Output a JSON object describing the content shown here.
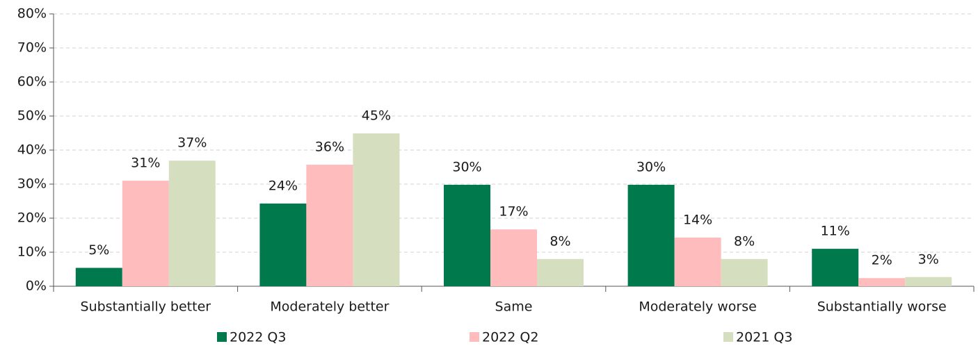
{
  "chart_data": {
    "type": "bar",
    "categories": [
      "Substantially better",
      "Moderately better",
      "Same",
      "Moderately worse",
      "Substantially worse"
    ],
    "series": [
      {
        "name": "2022 Q3",
        "color": "#007a4d",
        "values": [
          5.4,
          24.3,
          29.8,
          29.8,
          11.0
        ],
        "value_labels": [
          "5%",
          "24%",
          "30%",
          "30%",
          "11%"
        ]
      },
      {
        "name": "2022 Q2",
        "color": "#ffbcbc",
        "values": [
          31.0,
          35.7,
          16.7,
          14.3,
          2.4
        ],
        "value_labels": [
          "31%",
          "36%",
          "17%",
          "14%",
          "2%"
        ]
      },
      {
        "name": "2021 Q3",
        "color": "#d5dfc0",
        "values": [
          36.9,
          44.9,
          8.0,
          8.0,
          2.7
        ],
        "value_labels": [
          "37%",
          "45%",
          "8%",
          "8%",
          "3%"
        ]
      }
    ],
    "ylim": [
      0,
      80
    ],
    "yticks": [
      {
        "value": 0,
        "label": "0%"
      },
      {
        "value": 10,
        "label": "10%"
      },
      {
        "value": 20,
        "label": "20%"
      },
      {
        "value": 30,
        "label": "30%"
      },
      {
        "value": 40,
        "label": "40%"
      },
      {
        "value": 50,
        "label": "50%"
      },
      {
        "value": 60,
        "label": "60%"
      },
      {
        "value": 70,
        "label": "70%"
      },
      {
        "value": 80,
        "label": "80%"
      }
    ],
    "grid": true,
    "legend": "bottom"
  }
}
